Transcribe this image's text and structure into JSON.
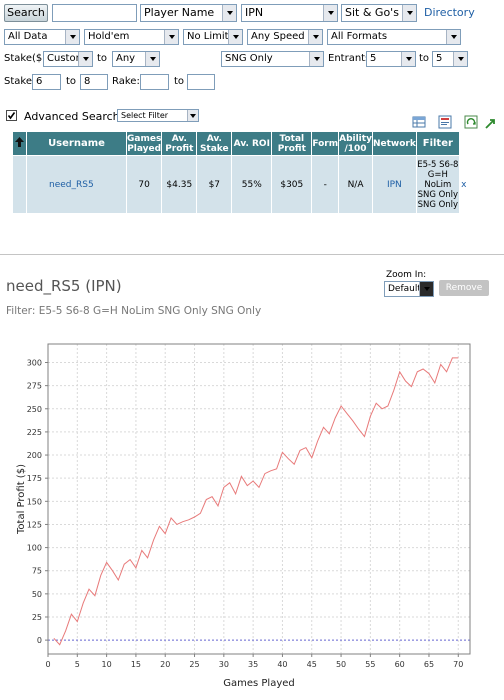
{
  "search_bar": {
    "search_label": "Search",
    "search_value": "",
    "search_field": "Player Name",
    "network": "IPN",
    "game_type": "Sit & Go's",
    "directory_link": "Directory"
  },
  "filters_row1": {
    "data_range": "All Data",
    "game": "Hold'em",
    "limit": "No Limit",
    "speed": "Any Speed",
    "format": "All Formats"
  },
  "filters_row2": {
    "stake_label": "Stake($)",
    "stake_mode": "Custom",
    "to_label": "to",
    "stake_to": "Any",
    "sng_type": "SNG Only",
    "entrants_label": "Entrants",
    "entrants_from": "5",
    "entrants_to_label": "to",
    "entrants_to": "5"
  },
  "filters_row3": {
    "stake_label": "Stake:",
    "stake_from": "6",
    "to_label": "to",
    "stake_to": "8",
    "rake_label": "Rake:",
    "rake_from": "",
    "rake_to_label": "to",
    "rake_to": ""
  },
  "advanced": {
    "checked": true,
    "label": "Advanced Search",
    "filter_select": "Select Filter"
  },
  "table": {
    "headers": {
      "username": "Username",
      "games_played": "Games Played",
      "av_profit": "Av. Profit",
      "av_stake": "Av. Stake",
      "av_roi": "Av. ROI",
      "total_profit": "Total Profit",
      "form": "Form",
      "ability": "Ability /100",
      "network": "Network",
      "filter": "Filter"
    },
    "row": {
      "username": "need_RS5",
      "games_played": "70",
      "av_profit": "$4.35",
      "av_stake": "$7",
      "av_roi": "55%",
      "total_profit": "$305",
      "form": "-",
      "ability": "N/A",
      "network": "IPN",
      "filter_lines": [
        "E5-5 S6-8",
        "G=H",
        "NoLim",
        "SNG Only",
        "SNG Only"
      ],
      "remove": "x"
    }
  },
  "graph_panel": {
    "title": "need_RS5 (IPN)",
    "filter_text": "Filter: E5-5 S6-8 G=H NoLim SNG Only SNG Only",
    "zoom_label": "Zoom In:",
    "zoom_value": "Default",
    "remove_label": "Remove"
  },
  "chart_data": {
    "type": "line",
    "xlabel": "Games Played",
    "ylabel": "Total Profit ($)",
    "xlim": [
      0,
      72
    ],
    "ylim": [
      -15,
      320
    ],
    "xticks": [
      0,
      5,
      10,
      15,
      20,
      25,
      30,
      35,
      40,
      45,
      50,
      55,
      60,
      65,
      70
    ],
    "yticks": [
      0,
      25,
      50,
      75,
      100,
      125,
      150,
      175,
      200,
      225,
      250,
      275,
      300
    ],
    "grid": true,
    "line_color": "#e87a7a",
    "zero_line_color": "#6b6bd6",
    "series": [
      {
        "x": [
          1,
          2,
          3,
          4,
          5,
          6,
          7,
          8,
          9,
          10,
          11,
          12,
          13,
          14,
          15,
          16,
          17,
          18,
          19,
          20,
          21,
          22,
          23,
          24,
          25,
          26,
          27,
          28,
          29,
          30,
          31,
          32,
          33,
          34,
          35,
          36,
          37,
          38,
          39,
          40,
          41,
          42,
          43,
          44,
          45,
          46,
          47,
          48,
          49,
          50,
          51,
          52,
          53,
          54,
          55,
          56,
          57,
          58,
          59,
          60,
          61,
          62,
          63,
          64,
          65,
          66,
          67,
          68,
          69,
          70
        ],
        "y": [
          2,
          -5,
          10,
          28,
          20,
          40,
          55,
          48,
          70,
          84,
          75,
          65,
          82,
          87,
          78,
          97,
          89,
          108,
          123,
          115,
          132,
          125,
          128,
          130,
          133,
          137,
          152,
          155,
          145,
          165,
          170,
          158,
          177,
          167,
          172,
          165,
          180,
          183,
          185,
          203,
          196,
          190,
          205,
          208,
          197,
          215,
          230,
          223,
          240,
          253,
          245,
          237,
          228,
          220,
          242,
          256,
          250,
          253,
          270,
          290,
          280,
          274,
          290,
          293,
          288,
          278,
          298,
          290,
          305,
          305
        ]
      }
    ]
  }
}
